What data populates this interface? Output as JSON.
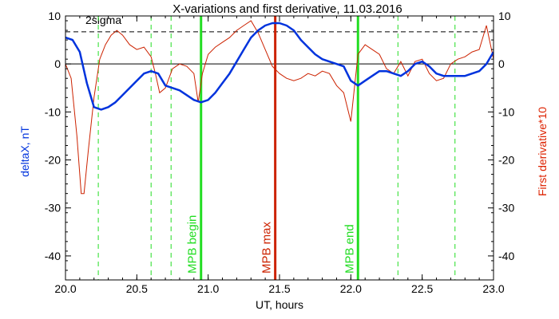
{
  "chart_data": {
    "type": "line",
    "title": "X-variations and first derivative, 11.03.2016",
    "xlabel": "UT, hours",
    "ylabel_left": "deltaX, nT",
    "ylabel_right": "First derivative*10",
    "xlim": [
      20.0,
      23.0
    ],
    "ylim": [
      -45,
      10
    ],
    "xticks": [
      20.0,
      20.5,
      21.0,
      21.5,
      22.0,
      22.5,
      23.0
    ],
    "xtick_labels": [
      "20.0",
      "20.5",
      "21.0",
      "21.5",
      "22.0",
      "22.5",
      "23.0"
    ],
    "yticks": [
      10,
      0,
      -10,
      -20,
      -30,
      -40
    ],
    "ytick_labels": [
      "10",
      "0",
      "-10",
      "-20",
      "-30",
      "-40"
    ],
    "sigma_label": "2sigma",
    "sigma_level": 6.7,
    "zero_level": 0,
    "colors": {
      "deltaX": "#0033dd",
      "derivative": "#cc2200",
      "markers": "#22dd22",
      "max": "#cc2200"
    },
    "series": [
      {
        "key": "deltaX",
        "x": [
          20.0,
          20.05,
          20.1,
          20.15,
          20.2,
          20.25,
          20.3,
          20.35,
          20.4,
          20.45,
          20.5,
          20.55,
          20.6,
          20.65,
          20.7,
          20.75,
          20.8,
          20.85,
          20.9,
          20.95,
          21.0,
          21.05,
          21.1,
          21.15,
          21.2,
          21.25,
          21.3,
          21.35,
          21.4,
          21.45,
          21.5,
          21.55,
          21.6,
          21.65,
          21.7,
          21.75,
          21.8,
          21.85,
          21.9,
          21.95,
          22.0,
          22.05,
          22.1,
          22.15,
          22.2,
          22.25,
          22.3,
          22.35,
          22.4,
          22.45,
          22.5,
          22.55,
          22.6,
          22.65,
          22.7,
          22.75,
          22.8,
          22.85,
          22.9,
          22.95,
          23.0
        ],
        "y": [
          5.5,
          5.0,
          2.5,
          -4.0,
          -9.0,
          -9.5,
          -9.0,
          -8.0,
          -6.5,
          -5.0,
          -3.5,
          -2.0,
          -1.5,
          -2.0,
          -4.5,
          -5.0,
          -5.5,
          -6.5,
          -7.5,
          -8.0,
          -7.5,
          -6.0,
          -4.0,
          -2.0,
          0.5,
          3.0,
          5.5,
          7.0,
          8.0,
          8.5,
          8.5,
          8.0,
          7.0,
          5.0,
          3.5,
          2.0,
          1.0,
          0.5,
          0.0,
          -0.5,
          -3.5,
          -4.5,
          -3.5,
          -2.5,
          -1.5,
          -1.5,
          -2.0,
          -2.5,
          -1.5,
          0.0,
          0.5,
          -0.5,
          -2.0,
          -2.5,
          -2.5,
          -2.5,
          -2.5,
          -2.0,
          -1.5,
          0.0,
          2.5
        ]
      },
      {
        "key": "derivative",
        "x": [
          20.0,
          20.04,
          20.08,
          20.11,
          20.13,
          20.16,
          20.2,
          20.24,
          20.28,
          20.32,
          20.36,
          20.4,
          20.45,
          20.5,
          20.55,
          20.6,
          20.63,
          20.66,
          20.7,
          20.75,
          20.8,
          20.85,
          20.9,
          20.93,
          20.96,
          21.0,
          21.05,
          21.1,
          21.15,
          21.2,
          21.25,
          21.3,
          21.35,
          21.4,
          21.45,
          21.5,
          21.55,
          21.6,
          21.65,
          21.7,
          21.75,
          21.8,
          21.85,
          21.9,
          21.95,
          22.0,
          22.05,
          22.1,
          22.15,
          22.2,
          22.25,
          22.3,
          22.35,
          22.4,
          22.45,
          22.5,
          22.55,
          22.6,
          22.65,
          22.7,
          22.75,
          22.8,
          22.85,
          22.9,
          22.95,
          23.0
        ],
        "y": [
          0.0,
          -3.0,
          -15.0,
          -27.0,
          -27.0,
          -18.0,
          -7.0,
          1.0,
          4.0,
          6.0,
          7.0,
          6.0,
          4.0,
          3.0,
          3.5,
          1.5,
          -2.0,
          -6.0,
          -5.0,
          -1.0,
          0.0,
          -0.5,
          -2.0,
          -8.0,
          -2.0,
          2.0,
          3.5,
          4.5,
          5.5,
          7.0,
          8.0,
          9.0,
          6.5,
          3.0,
          -0.5,
          -2.0,
          -3.0,
          -3.5,
          -3.0,
          -2.0,
          -2.5,
          -1.5,
          -2.0,
          -4.5,
          -6.0,
          -12.0,
          2.0,
          4.0,
          3.0,
          2.0,
          -1.0,
          -2.0,
          0.5,
          -2.5,
          0.5,
          1.0,
          -2.0,
          -3.5,
          -3.0,
          0.0,
          1.0,
          1.5,
          2.5,
          3.0,
          8.0,
          1.0
        ]
      }
    ],
    "markers": [
      {
        "x": 20.23,
        "style": "dashed"
      },
      {
        "x": 20.6,
        "style": "dashed"
      },
      {
        "x": 20.74,
        "style": "dashed"
      },
      {
        "x": 20.95,
        "style": "solid",
        "label": "MPB begin"
      },
      {
        "x": 21.47,
        "style": "max",
        "label": "MPB max"
      },
      {
        "x": 22.05,
        "style": "solid",
        "label": "MPB end"
      },
      {
        "x": 22.33,
        "style": "dashed"
      },
      {
        "x": 22.73,
        "style": "dashed"
      }
    ]
  }
}
